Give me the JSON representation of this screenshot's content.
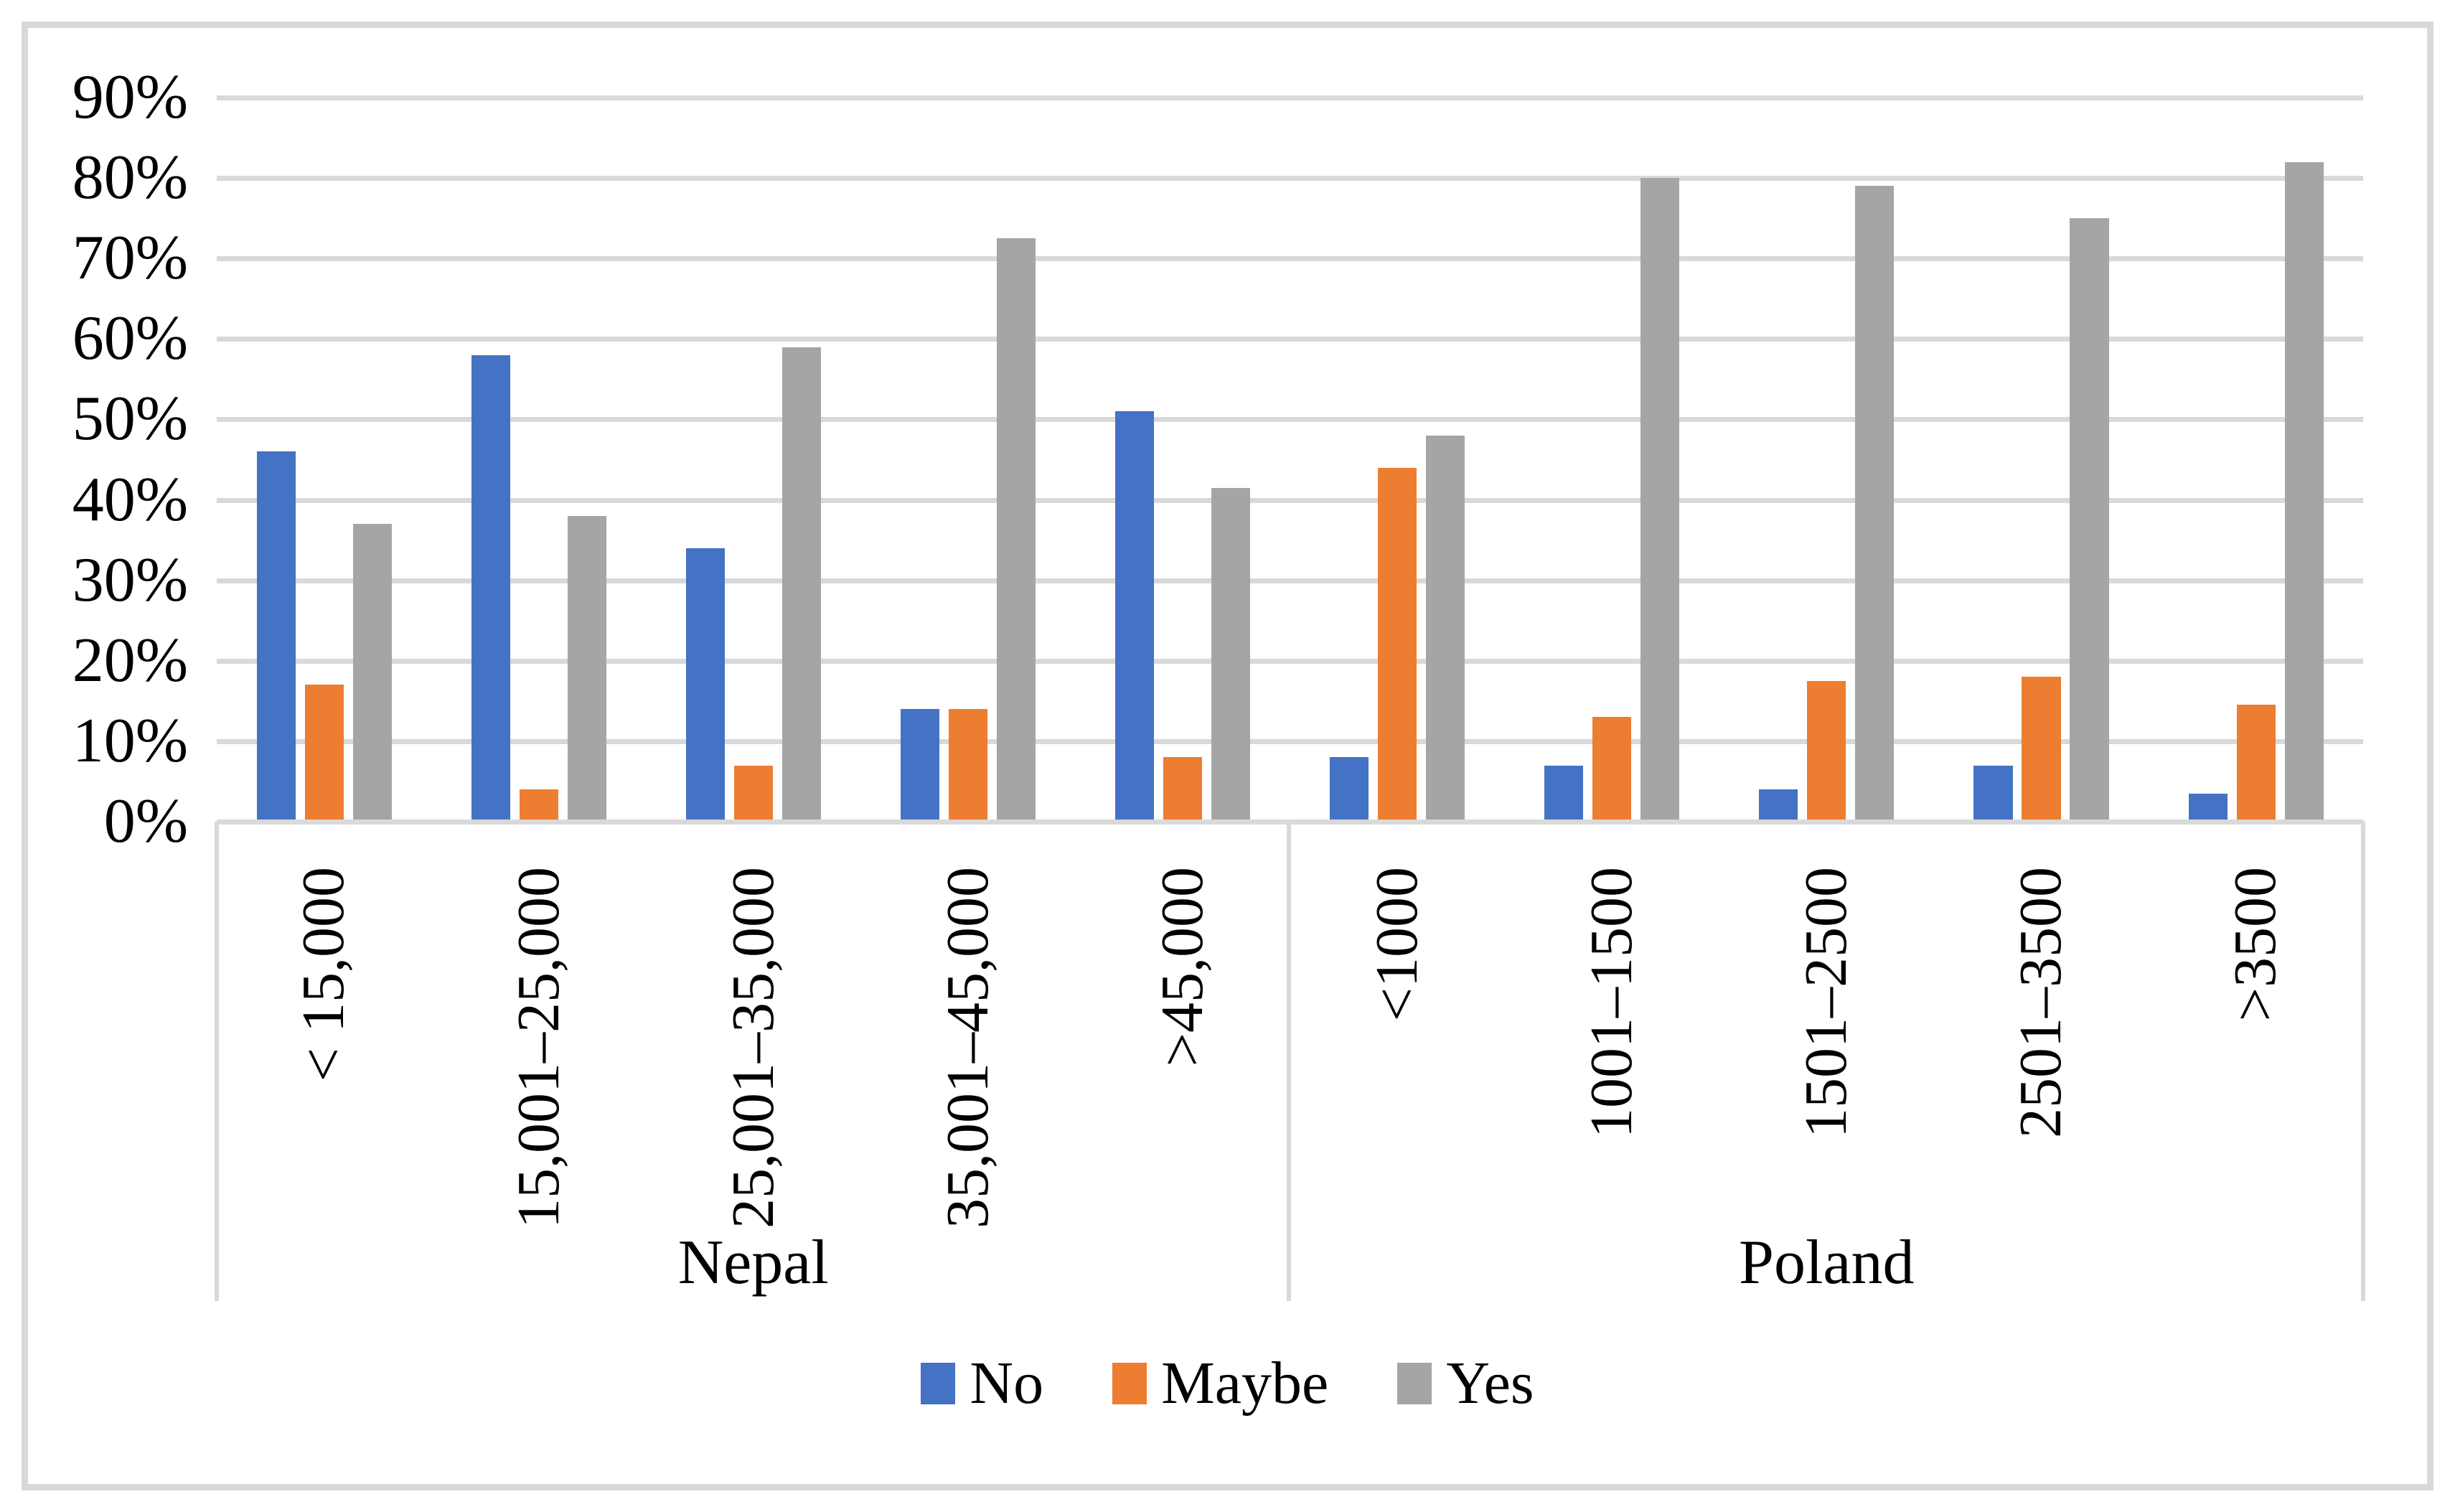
{
  "colors": {
    "no": "#4472C4",
    "maybe": "#ED7D31",
    "yes": "#A5A5A5",
    "gridline": "#D9D9D9",
    "axis_line": "#D9D9D9",
    "separator": "#D9D9D9",
    "frame_border": "#D9D9D9",
    "text": "#000000",
    "background": "#FFFFFF"
  },
  "chart_data": {
    "type": "bar",
    "title": "",
    "xlabel": "",
    "ylabel": "",
    "ylim": [
      0,
      90
    ],
    "grid": true,
    "legend_position": "bottom-center",
    "y_tick_labels": [
      "90%",
      "80%",
      "70%",
      "60%",
      "50%",
      "40%",
      "30%",
      "20%",
      "10%",
      "0%"
    ],
    "y_tick_values": [
      90,
      80,
      70,
      60,
      50,
      40,
      30,
      20,
      10,
      0
    ],
    "legend": [
      {
        "name": "No",
        "color": "#4472C4"
      },
      {
        "name": "Maybe",
        "color": "#ED7D31"
      },
      {
        "name": "Yes",
        "color": "#A5A5A5"
      }
    ],
    "groups": [
      {
        "label": "Nepal",
        "categories": [
          "< 15,000",
          "15,001–25,000",
          "25,001–35,000",
          "35,001–45,000",
          ">45,000"
        ],
        "series": [
          {
            "name": "No",
            "values": [
              46,
              58,
              34,
              14,
              51
            ]
          },
          {
            "name": "Maybe",
            "values": [
              17,
              4,
              7,
              14,
              8
            ]
          },
          {
            "name": "Yes",
            "values": [
              37,
              38,
              59,
              72.5,
              41.5
            ]
          }
        ]
      },
      {
        "label": "Poland",
        "categories": [
          "<1000",
          "1001–1500",
          "1501–2500",
          "2501–3500",
          ">3500"
        ],
        "series": [
          {
            "name": "No",
            "values": [
              8,
              7,
              4,
              7,
              3.5
            ]
          },
          {
            "name": "Maybe",
            "values": [
              44,
              13,
              17.5,
              18,
              14.5
            ]
          },
          {
            "name": "Yes",
            "values": [
              48,
              80,
              79,
              75,
              82
            ]
          }
        ]
      }
    ]
  }
}
